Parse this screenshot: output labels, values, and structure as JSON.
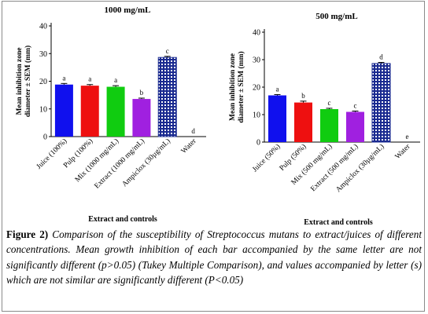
{
  "chart_data": [
    {
      "type": "bar",
      "title": "1000 mg/mL",
      "xlabel": "Extract and controls",
      "ylabel": "Mean inhibition zone diameter ± SEM (mm)",
      "ylim": [
        0,
        40
      ],
      "yticks": [
        0,
        10,
        20,
        30,
        40
      ],
      "categories": [
        "Juice (100%)",
        "Pulp (100%)",
        "Mix (1000 mg/mL)",
        "Extract (1000 mg/mL)",
        "Ampiclox (30µg/mL)",
        "Water"
      ],
      "values": [
        18.8,
        18.4,
        18.0,
        13.6,
        28.6,
        0
      ],
      "sem": [
        0.4,
        0.4,
        0.4,
        0.3,
        0.4,
        0
      ],
      "letters": [
        "a",
        "a",
        "a",
        "b",
        "c",
        "d"
      ],
      "colors": [
        "#1010ee",
        "#ee1010",
        "#10cc10",
        "#a020e0",
        "#1a2a90",
        "#000000"
      ],
      "patterned": [
        false,
        false,
        false,
        false,
        true,
        false
      ],
      "grid": false
    },
    {
      "type": "bar",
      "title": "500 mg/mL",
      "xlabel": "Extract and controls",
      "ylabel": "Mean inhibition zone diameter ± SEM (mm)",
      "ylim": [
        0,
        40
      ],
      "yticks": [
        0,
        10,
        20,
        30,
        40
      ],
      "categories": [
        "Juice (50%)",
        "Pulp (50%)",
        "Mix (500 mg/mL)",
        "Extract (500 mg/mL)",
        "Ampiclox (30µg/mL)",
        "Water"
      ],
      "values": [
        17.0,
        14.4,
        12.0,
        11.0,
        28.6,
        0
      ],
      "sem": [
        0.3,
        0.5,
        0.3,
        0.3,
        0.4,
        0
      ],
      "letters": [
        "a",
        "b",
        "c",
        "c",
        "d",
        "e"
      ],
      "colors": [
        "#1010ee",
        "#ee1010",
        "#10cc10",
        "#a020e0",
        "#1a2a90",
        "#000000"
      ],
      "patterned": [
        false,
        false,
        false,
        false,
        true,
        false
      ],
      "grid": false
    }
  ],
  "caption": {
    "label": "Figure 2)",
    "text_1": " Comparison of the susceptibility of ",
    "organism": "Streptococcus mutans",
    "text_2": " to extract/juices of different concentrations. Mean growth inhibition of each bar accompanied by the same letter are not significantly different (p>0.05) (Tukey Multiple Comparison), and values accompanied by letter (s) which are not similar are significantly different (P<0.05)"
  }
}
